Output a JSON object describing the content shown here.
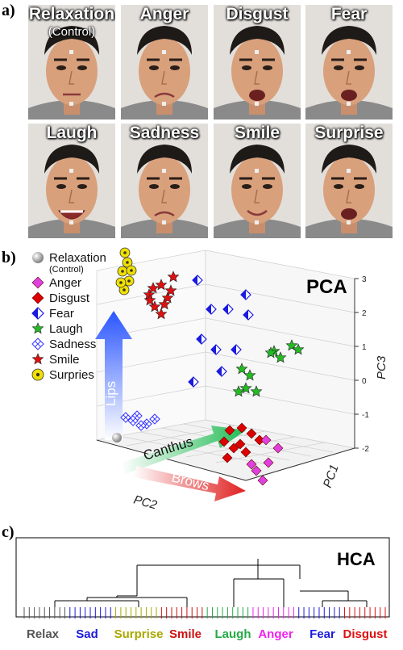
{
  "panels": {
    "a": "a)",
    "b": "b)",
    "c": "c)"
  },
  "faces": [
    {
      "label": "Relaxation",
      "sublabel": "(Control)"
    },
    {
      "label": "Anger"
    },
    {
      "label": "Disgust"
    },
    {
      "label": "Fear"
    },
    {
      "label": "Laugh"
    },
    {
      "label": "Sadness"
    },
    {
      "label": "Smile"
    },
    {
      "label": "Surprise"
    }
  ],
  "pca": {
    "title": "PCA",
    "axis_labels": {
      "pc1": "PC1",
      "pc2": "PC2",
      "pc3": "PC3"
    },
    "pc3_ticks": [
      "3",
      "2",
      "1",
      "0",
      "-1",
      "-2"
    ],
    "arrows": {
      "lips": "Lips",
      "canthus": "Canthus",
      "brows": "Brows"
    },
    "legend": [
      {
        "name": "Relaxation",
        "sub": "(Control)",
        "marker": "sphere",
        "color": "#9a9a9a"
      },
      {
        "name": "Anger",
        "marker": "diamond",
        "color": "#e040e0"
      },
      {
        "name": "Disgust",
        "marker": "diamond",
        "color": "#dd0000"
      },
      {
        "name": "Fear",
        "marker": "half-diamond",
        "color": "#1a1ae0"
      },
      {
        "name": "Laugh",
        "marker": "star",
        "color": "#22bb22"
      },
      {
        "name": "Sadness",
        "marker": "x-diamond",
        "color": "#3a3aff"
      },
      {
        "name": "Smile",
        "marker": "star",
        "color": "#dd1111"
      },
      {
        "name": "Surpries",
        "marker": "dot-circle",
        "color": "#f0e000"
      }
    ]
  },
  "chart_data": [
    {
      "type": "scatter",
      "title": "PCA",
      "xlabel": "PC1",
      "ylabel": "PC2",
      "zlabel": "PC3",
      "zlim": [
        -2,
        3
      ],
      "series": [
        {
          "name": "Relaxation",
          "points": [
            [
              0,
              -3,
              -2
            ]
          ]
        },
        {
          "name": "Surpries",
          "points": [
            [
              -3,
              -1,
              2.6
            ],
            [
              -3,
              -1,
              2.3
            ],
            [
              -3,
              -1,
              2.0
            ],
            [
              -3,
              -1,
              1.7
            ],
            [
              -3,
              -1,
              1.4
            ]
          ]
        },
        {
          "name": "Smile",
          "points": [
            [
              -1,
              -1,
              1.6
            ],
            [
              -1,
              -1,
              1.4
            ],
            [
              -1,
              -1,
              1.2
            ],
            [
              -1,
              -1,
              1.0
            ],
            [
              -1,
              -1,
              0.8
            ]
          ]
        },
        {
          "name": "Fear",
          "points": [
            [
              1,
              1,
              2.6
            ],
            [
              1,
              1,
              2.0
            ],
            [
              1,
              1,
              1.6
            ],
            [
              1,
              1,
              1.0
            ],
            [
              1,
              1,
              0.4
            ]
          ]
        },
        {
          "name": "Laugh",
          "points": [
            [
              2,
              1,
              1.4
            ],
            [
              2,
              1,
              1.0
            ],
            [
              2,
              1,
              0.6
            ],
            [
              2,
              1,
              0.2
            ],
            [
              2,
              1,
              -0.2
            ]
          ]
        },
        {
          "name": "Sadness",
          "points": [
            [
              -2,
              -2,
              -1.0
            ],
            [
              -2,
              -2,
              -1.2
            ],
            [
              -2,
              -2,
              -1.4
            ]
          ]
        },
        {
          "name": "Disgust",
          "points": [
            [
              1,
              -2,
              -1.6
            ],
            [
              1,
              -2,
              -1.8
            ],
            [
              1,
              -2,
              -2.0
            ],
            [
              1,
              -2,
              -2.2
            ]
          ]
        },
        {
          "name": "Anger",
          "points": [
            [
              2,
              -2,
              -1.8
            ],
            [
              2,
              -2,
              -2.0
            ],
            [
              2,
              -2,
              -2.4
            ]
          ]
        }
      ]
    },
    {
      "type": "dendrogram",
      "title": "HCA",
      "categories": [
        "Relax",
        "Sad",
        "Surprise",
        "Smile",
        "Laugh",
        "Anger",
        "Fear",
        "Disgust"
      ],
      "category_colors": [
        "#555555",
        "#1a1ae0",
        "#a8a800",
        "#cc1111",
        "#22aa44",
        "#ee22ee",
        "#1a1ae0",
        "#dd1111"
      ]
    }
  ],
  "hca": {
    "title": "HCA"
  }
}
